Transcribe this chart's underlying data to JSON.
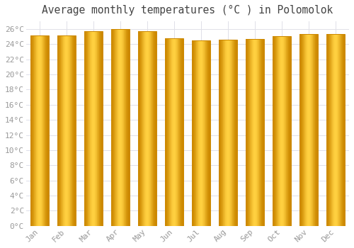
{
  "title": "Average monthly temperatures (°C ) in Polomolok",
  "months": [
    "Jan",
    "Feb",
    "Mar",
    "Apr",
    "May",
    "Jun",
    "Jul",
    "Aug",
    "Sep",
    "Oct",
    "Nov",
    "Dec"
  ],
  "values": [
    25.1,
    25.1,
    25.7,
    26.0,
    25.7,
    24.8,
    24.5,
    24.6,
    24.7,
    25.0,
    25.3,
    25.3
  ],
  "bar_color_center": "#FFD040",
  "bar_color_edge": "#E08000",
  "bar_edge_color": "#CC8800",
  "background_color": "#ffffff",
  "grid_color": "#e0e0e8",
  "ylim": [
    0,
    27
  ],
  "ytick_max": 26,
  "ytick_step": 2,
  "title_fontsize": 10.5,
  "tick_fontsize": 8,
  "title_color": "#444444",
  "tick_color": "#999999",
  "font_family": "monospace",
  "bar_width": 0.68
}
